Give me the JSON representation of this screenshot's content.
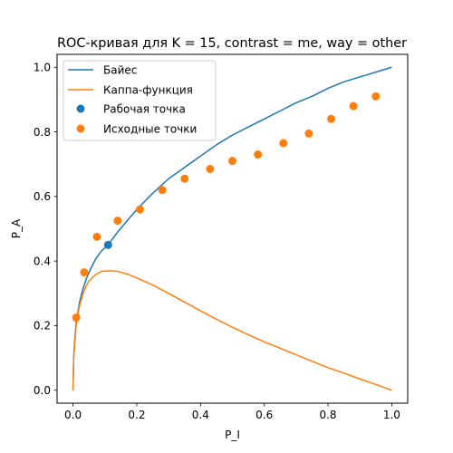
{
  "chart_data": {
    "type": "line",
    "title": "ROC-кривая для K = 15, contrast = me, way = other",
    "xlabel": "P_I",
    "ylabel": "P_A",
    "xlim": [
      -0.05,
      1.05
    ],
    "ylim": [
      -0.04,
      1.04
    ],
    "xticks": [
      "0.0",
      "0.2",
      "0.4",
      "0.6",
      "0.8",
      "1.0"
    ],
    "yticks": [
      "0.0",
      "0.2",
      "0.4",
      "0.6",
      "0.8",
      "1.0"
    ],
    "grid": false,
    "legend_position": "top-left",
    "series": [
      {
        "name": "Байес",
        "kind": "line",
        "color": "#1f77b4",
        "x": [
          0.0,
          0.002,
          0.005,
          0.01,
          0.015,
          0.02,
          0.03,
          0.04,
          0.05,
          0.07,
          0.09,
          0.11,
          0.14,
          0.17,
          0.2,
          0.25,
          0.3,
          0.35,
          0.4,
          0.45,
          0.5,
          0.55,
          0.6,
          0.65,
          0.7,
          0.75,
          0.8,
          0.85,
          0.9,
          0.95,
          1.0
        ],
        "y": [
          0.0,
          0.1,
          0.15,
          0.21,
          0.24,
          0.27,
          0.31,
          0.34,
          0.365,
          0.405,
          0.432,
          0.45,
          0.49,
          0.525,
          0.56,
          0.61,
          0.655,
          0.69,
          0.725,
          0.76,
          0.79,
          0.815,
          0.84,
          0.865,
          0.89,
          0.91,
          0.935,
          0.955,
          0.97,
          0.985,
          1.0
        ]
      },
      {
        "name": "Каппа-функция",
        "kind": "line",
        "color": "#ff7f0e",
        "x": [
          0.0,
          0.002,
          0.005,
          0.01,
          0.015,
          0.02,
          0.03,
          0.04,
          0.05,
          0.07,
          0.09,
          0.11,
          0.14,
          0.17,
          0.2,
          0.25,
          0.3,
          0.35,
          0.4,
          0.45,
          0.5,
          0.55,
          0.6,
          0.65,
          0.7,
          0.75,
          0.8,
          0.85,
          0.9,
          0.95,
          1.0
        ],
        "y": [
          0.0,
          0.09,
          0.14,
          0.2,
          0.235,
          0.26,
          0.295,
          0.32,
          0.338,
          0.358,
          0.368,
          0.37,
          0.368,
          0.36,
          0.348,
          0.326,
          0.3,
          0.273,
          0.246,
          0.22,
          0.195,
          0.172,
          0.15,
          0.13,
          0.11,
          0.09,
          0.07,
          0.053,
          0.035,
          0.018,
          0.0
        ]
      },
      {
        "name": "Рабочая точка",
        "kind": "scatter",
        "color": "#1f77b4",
        "x": [
          0.11
        ],
        "y": [
          0.45
        ]
      },
      {
        "name": "Исходные точки",
        "kind": "scatter",
        "color": "#ff7f0e",
        "x": [
          0.01,
          0.035,
          0.075,
          0.14,
          0.21,
          0.28,
          0.35,
          0.43,
          0.5,
          0.58,
          0.66,
          0.74,
          0.81,
          0.88,
          0.95
        ],
        "y": [
          0.225,
          0.365,
          0.475,
          0.525,
          0.56,
          0.62,
          0.655,
          0.685,
          0.71,
          0.73,
          0.765,
          0.795,
          0.84,
          0.88,
          0.91
        ]
      }
    ]
  }
}
